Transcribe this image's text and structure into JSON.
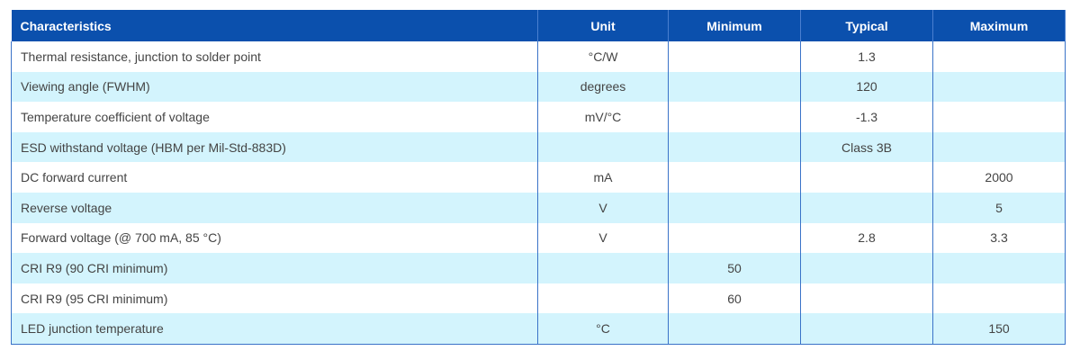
{
  "headers": [
    "Characteristics",
    "Unit",
    "Minimum",
    "Typical",
    "Maximum"
  ],
  "rows": [
    [
      "Thermal resistance, junction to solder point",
      "°C/W",
      "",
      "1.3",
      ""
    ],
    [
      "Viewing angle (FWHM)",
      "degrees",
      "",
      "120",
      ""
    ],
    [
      "Temperature coefficient of voltage",
      "mV/°C",
      "",
      "-1.3",
      ""
    ],
    [
      "ESD withstand voltage (HBM per Mil-Std-883D)",
      "",
      "",
      "Class 3B",
      ""
    ],
    [
      "DC forward current",
      "mA",
      "",
      "",
      "2000"
    ],
    [
      "Reverse voltage",
      "V",
      "",
      "",
      "5"
    ],
    [
      "Forward voltage (@ 700 mA, 85 °C)",
      "V",
      "",
      "2.8",
      "3.3"
    ],
    [
      "CRI R9 (90 CRI minimum)",
      "",
      "50",
      "",
      ""
    ],
    [
      "CRI R9 (95 CRI minimum)",
      "",
      "60",
      "",
      ""
    ],
    [
      "LED junction temperature",
      "°C",
      "",
      "",
      "150"
    ]
  ],
  "colors": {
    "header": "#0b50ad",
    "stripe": "#d3f4fd"
  }
}
